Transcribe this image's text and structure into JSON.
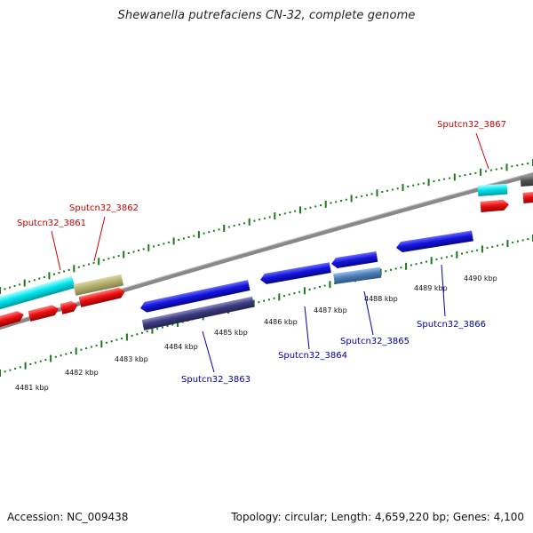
{
  "title": "Shewanella putrefaciens CN-32, complete genome",
  "footer": {
    "accession": "Accession: NC_009438",
    "summary": "Topology: circular; Length: 4,659,220 bp; Genes: 4,100"
  },
  "colors": {
    "backbone": "#888888",
    "tick": "#1a7a1a",
    "forward_label": "#cc0000",
    "reverse_label": "#0000aa",
    "cyan": "#00e5ee",
    "khaki": "#b5b070",
    "red": "#ee1111",
    "blue": "#1515dd",
    "navy": "#3b3b80",
    "steel": "#4f7fb8",
    "gray": "#555555"
  },
  "scale": {
    "unit": "kbp",
    "labels": [
      "4481 kbp",
      "4482 kbp",
      "4483 kbp",
      "4484 kbp",
      "4485 kbp",
      "4486 kbp",
      "4487 kbp",
      "4488 kbp",
      "4489 kbp",
      "4490 kbp"
    ]
  },
  "gene_labels": [
    {
      "id": "forward-gene-sputcn32-3861",
      "text": "Sputcn32_3861",
      "strand": "forward"
    },
    {
      "id": "forward-gene-sputcn32-3862",
      "text": "Sputcn32_3862",
      "strand": "forward"
    },
    {
      "id": "forward-gene-sputcn32-3867",
      "text": "Sputcn32_3867",
      "strand": "forward"
    },
    {
      "id": "reverse-gene-sputcn32-3863",
      "text": "Sputcn32_3863",
      "strand": "reverse"
    },
    {
      "id": "reverse-gene-sputcn32-3864",
      "text": "Sputcn32_3864",
      "strand": "reverse"
    },
    {
      "id": "reverse-gene-sputcn32-3865",
      "text": "Sputcn32_3865",
      "strand": "reverse"
    },
    {
      "id": "reverse-gene-sputcn32-3866",
      "text": "Sputcn32_3866",
      "strand": "reverse"
    }
  ]
}
